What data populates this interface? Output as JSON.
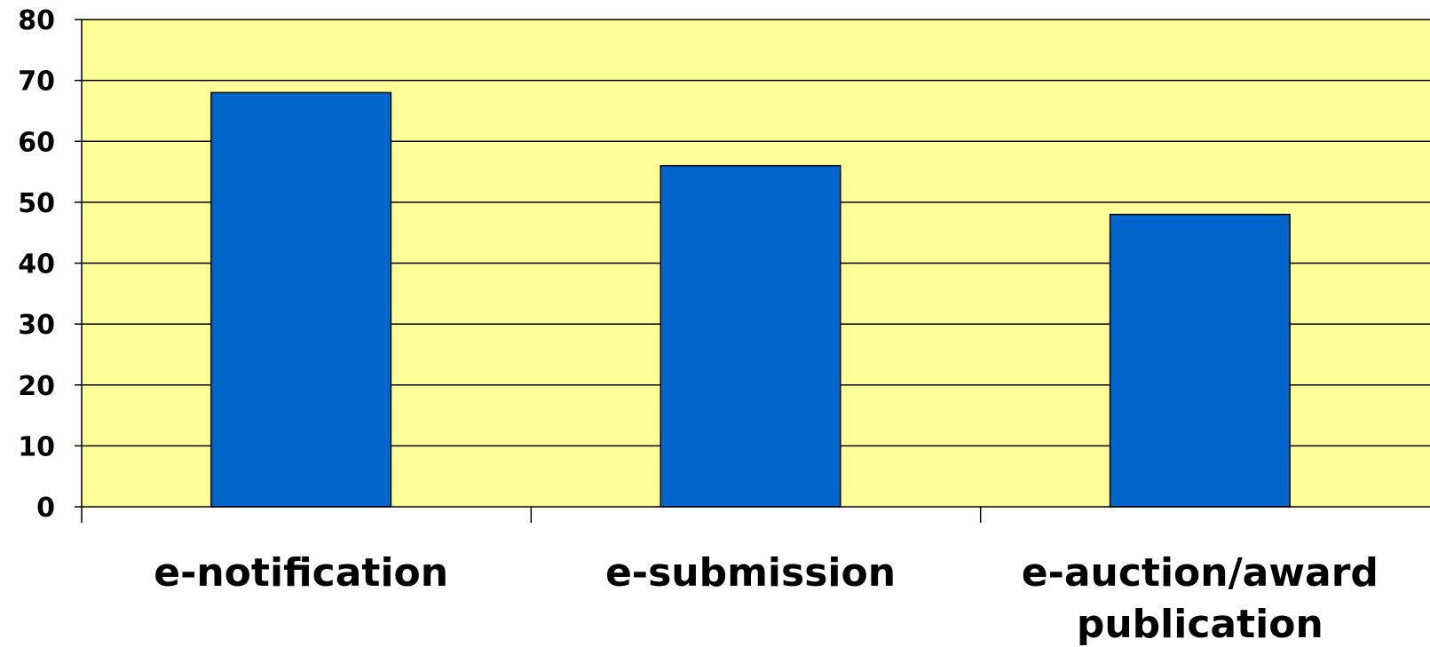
{
  "chart_data": {
    "type": "bar",
    "title": "",
    "xlabel": "",
    "ylabel": "",
    "categories": [
      "e-notification",
      "e-submission",
      "e-auction/award publication"
    ],
    "category_lines": [
      [
        "e-notification"
      ],
      [
        "e-submission"
      ],
      [
        "e-auction/award",
        "publication"
      ]
    ],
    "values": [
      68,
      56,
      48
    ],
    "ylim": [
      0,
      80
    ],
    "yticks": [
      "0",
      "10",
      "20",
      "30",
      "40",
      "50",
      "60",
      "70",
      "80"
    ],
    "grid": true,
    "legend": "none",
    "colors": {
      "plot_background": "#FFFF99",
      "bar_fill": "#0066CC",
      "bar_stroke": "#000000",
      "grid": "#000000"
    }
  }
}
